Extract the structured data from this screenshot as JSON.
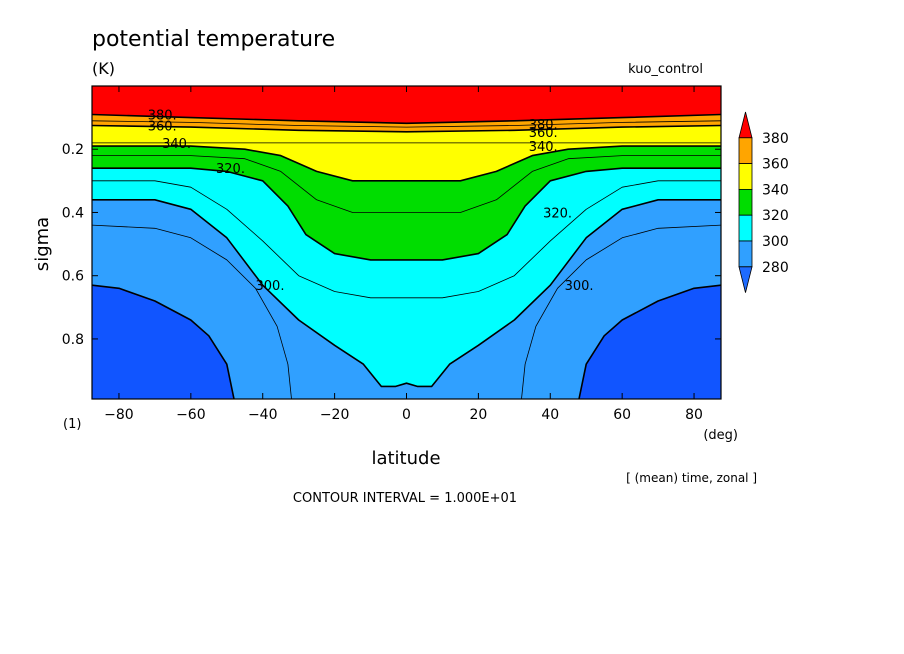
{
  "chart_data": {
    "type": "contour",
    "title": "potential temperature",
    "units": "(K)",
    "experiment": "kuo_control",
    "xlabel": "latitude",
    "xunit": "(deg)",
    "ylabel": "sigma",
    "yunit": "(1)",
    "averaging_note": "[ (mean) time, zonal ]",
    "contour_interval_text": "CONTOUR INTERVAL = 1.000E+01",
    "xlim": [
      -87.5,
      87.5
    ],
    "ylim": [
      0.0,
      0.99
    ],
    "y_inverted": true,
    "x_ticks": [
      -80,
      -60,
      -40,
      -20,
      0,
      20,
      40,
      60,
      80
    ],
    "y_ticks": [
      0.2,
      0.4,
      0.6,
      0.8
    ],
    "colorbar": {
      "labels": [
        "280",
        "300",
        "320",
        "340",
        "360",
        "380"
      ],
      "colors": [
        "#1e6bff",
        "#30a0ff",
        "#00ffff",
        "#00dd00",
        "#ffff00",
        "#ffa500",
        "#ff0000"
      ]
    },
    "fill_colors": {
      "below_280": "#1155ff",
      "280_300": "#30a0ff",
      "300_320": "#00ffff",
      "320_340": "#00dd00",
      "340_360": "#ffff00",
      "360_380": "#ffa500",
      "above_380": "#ff0000"
    },
    "contour_lines": [
      {
        "level": 280,
        "label": "",
        "points": [
          [
            -87.5,
            0.63
          ],
          [
            -80,
            0.64
          ],
          [
            -70,
            0.68
          ],
          [
            -60,
            0.74
          ],
          [
            -55,
            0.79
          ],
          [
            -50,
            0.88
          ],
          [
            -48,
            0.99
          ]
        ]
      },
      {
        "level": 280,
        "label": "",
        "points": [
          [
            48,
            0.99
          ],
          [
            50,
            0.88
          ],
          [
            55,
            0.79
          ],
          [
            60,
            0.74
          ],
          [
            70,
            0.68
          ],
          [
            80,
            0.64
          ],
          [
            87.5,
            0.63
          ]
        ]
      },
      {
        "level": 290,
        "label": "",
        "points": [
          [
            -87.5,
            0.44
          ],
          [
            -70,
            0.45
          ],
          [
            -60,
            0.48
          ],
          [
            -50,
            0.55
          ],
          [
            -42,
            0.64
          ],
          [
            -36,
            0.76
          ],
          [
            -33,
            0.88
          ],
          [
            -32,
            0.99
          ]
        ]
      },
      {
        "level": 290,
        "label": "",
        "points": [
          [
            32,
            0.99
          ],
          [
            33,
            0.88
          ],
          [
            36,
            0.76
          ],
          [
            42,
            0.64
          ],
          [
            50,
            0.55
          ],
          [
            60,
            0.48
          ],
          [
            70,
            0.45
          ],
          [
            87.5,
            0.44
          ]
        ]
      },
      {
        "level": 300,
        "label": "300.",
        "label_positions": [
          [
            -42,
            0.63
          ],
          [
            44,
            0.63
          ]
        ],
        "points": [
          [
            -87.5,
            0.36
          ],
          [
            -70,
            0.36
          ],
          [
            -60,
            0.39
          ],
          [
            -50,
            0.48
          ],
          [
            -40,
            0.63
          ],
          [
            -30,
            0.74
          ],
          [
            -20,
            0.82
          ],
          [
            -12,
            0.88
          ],
          [
            -7,
            0.95
          ],
          [
            -3,
            0.95
          ],
          [
            0,
            0.94
          ],
          [
            3,
            0.95
          ],
          [
            7,
            0.95
          ],
          [
            12,
            0.88
          ],
          [
            20,
            0.82
          ],
          [
            30,
            0.74
          ],
          [
            40,
            0.63
          ],
          [
            50,
            0.48
          ],
          [
            60,
            0.39
          ],
          [
            70,
            0.36
          ],
          [
            87.5,
            0.36
          ]
        ]
      },
      {
        "level": 310,
        "label": "",
        "points": [
          [
            -87.5,
            0.3
          ],
          [
            -70,
            0.3
          ],
          [
            -60,
            0.32
          ],
          [
            -50,
            0.39
          ],
          [
            -40,
            0.49
          ],
          [
            -30,
            0.6
          ],
          [
            -20,
            0.65
          ],
          [
            -10,
            0.67
          ],
          [
            0,
            0.67
          ],
          [
            10,
            0.67
          ],
          [
            20,
            0.65
          ],
          [
            30,
            0.6
          ],
          [
            40,
            0.49
          ],
          [
            50,
            0.39
          ],
          [
            60,
            0.32
          ],
          [
            70,
            0.3
          ],
          [
            87.5,
            0.3
          ]
        ]
      },
      {
        "level": 320,
        "label": "320.",
        "label_positions": [
          [
            -53,
            0.26
          ],
          [
            38,
            0.4
          ]
        ],
        "points": [
          [
            -87.5,
            0.26
          ],
          [
            -70,
            0.26
          ],
          [
            -60,
            0.26
          ],
          [
            -50,
            0.27
          ],
          [
            -40,
            0.3
          ],
          [
            -33,
            0.38
          ],
          [
            -28,
            0.47
          ],
          [
            -20,
            0.53
          ],
          [
            -10,
            0.55
          ],
          [
            0,
            0.55
          ],
          [
            10,
            0.55
          ],
          [
            20,
            0.53
          ],
          [
            28,
            0.47
          ],
          [
            33,
            0.38
          ],
          [
            40,
            0.3
          ],
          [
            50,
            0.27
          ],
          [
            60,
            0.26
          ],
          [
            70,
            0.26
          ],
          [
            87.5,
            0.26
          ]
        ]
      },
      {
        "level": 330,
        "label": "",
        "points": [
          [
            -87.5,
            0.22
          ],
          [
            -60,
            0.22
          ],
          [
            -45,
            0.23
          ],
          [
            -35,
            0.27
          ],
          [
            -25,
            0.36
          ],
          [
            -15,
            0.4
          ],
          [
            0,
            0.4
          ],
          [
            15,
            0.4
          ],
          [
            25,
            0.36
          ],
          [
            35,
            0.27
          ],
          [
            45,
            0.23
          ],
          [
            60,
            0.22
          ],
          [
            87.5,
            0.22
          ]
        ]
      },
      {
        "level": 340,
        "label": "340.",
        "label_positions": [
          [
            -68,
            0.18
          ],
          [
            34,
            0.19
          ]
        ],
        "points": [
          [
            -87.5,
            0.19
          ],
          [
            -60,
            0.19
          ],
          [
            -45,
            0.2
          ],
          [
            -35,
            0.22
          ],
          [
            -25,
            0.27
          ],
          [
            -15,
            0.3
          ],
          [
            0,
            0.3
          ],
          [
            15,
            0.3
          ],
          [
            25,
            0.27
          ],
          [
            35,
            0.22
          ],
          [
            45,
            0.2
          ],
          [
            60,
            0.19
          ],
          [
            87.5,
            0.19
          ]
        ]
      },
      {
        "level": 350,
        "label": "",
        "points": [
          [
            -87.5,
            0.18
          ],
          [
            -60,
            0.18
          ],
          [
            -30,
            0.18
          ],
          [
            0,
            0.18
          ],
          [
            30,
            0.18
          ],
          [
            60,
            0.18
          ],
          [
            87.5,
            0.18
          ]
        ]
      },
      {
        "level": 360,
        "label": "360.",
        "label_positions": [
          [
            -72,
            0.125
          ],
          [
            34,
            0.145
          ]
        ],
        "points": [
          [
            -87.5,
            0.125
          ],
          [
            -60,
            0.13
          ],
          [
            -30,
            0.14
          ],
          [
            0,
            0.145
          ],
          [
            30,
            0.14
          ],
          [
            60,
            0.13
          ],
          [
            87.5,
            0.125
          ]
        ]
      },
      {
        "level": 370,
        "label": "",
        "points": [
          [
            -87.5,
            0.11
          ],
          [
            -60,
            0.115
          ],
          [
            -30,
            0.125
          ],
          [
            0,
            0.13
          ],
          [
            30,
            0.125
          ],
          [
            60,
            0.115
          ],
          [
            87.5,
            0.11
          ]
        ]
      },
      {
        "level": 380,
        "label": "380.",
        "label_positions": [
          [
            -72,
            0.09
          ],
          [
            34,
            0.12
          ]
        ],
        "points": [
          [
            -87.5,
            0.09
          ],
          [
            -60,
            0.1
          ],
          [
            -30,
            0.11
          ],
          [
            0,
            0.118
          ],
          [
            30,
            0.11
          ],
          [
            60,
            0.1
          ],
          [
            87.5,
            0.09
          ]
        ]
      }
    ],
    "bands": [
      {
        "range": "above_380",
        "upper": "top",
        "lower": 380
      },
      {
        "range": "360_380",
        "upper": 380,
        "lower": 360
      },
      {
        "range": "340_360",
        "upper": 360,
        "lower": 340
      },
      {
        "range": "320_340",
        "upper": 340,
        "lower": 320
      },
      {
        "range": "300_320",
        "upper": 320,
        "lower": 300
      },
      {
        "range": "280_300",
        "upper": 300,
        "lower": 280
      }
    ]
  }
}
